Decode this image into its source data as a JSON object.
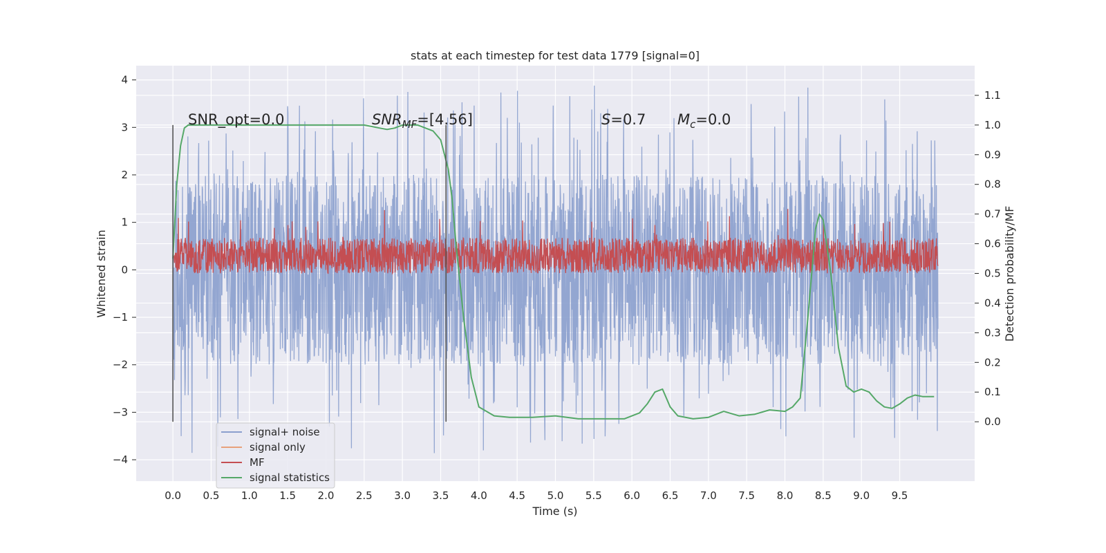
{
  "chart_data": {
    "type": "line",
    "title": "stats at each timestep for test data 1779 [signal=0]",
    "xlabel": "Time (s)",
    "ylabel_left": "Whitened strain",
    "ylabel_right": "Detection probability/MF",
    "xlim": [
      -0.48,
      10.48
    ],
    "ylim_left": [
      -4.45,
      4.3
    ],
    "ylim_right": [
      -0.2,
      1.2
    ],
    "x_ticks": [
      "0.0",
      "0.5",
      "1.0",
      "1.5",
      "2.0",
      "2.5",
      "3.0",
      "3.5",
      "4.0",
      "4.5",
      "5.0",
      "5.5",
      "6.0",
      "6.5",
      "7.0",
      "7.5",
      "8.0",
      "8.5",
      "9.0",
      "9.5"
    ],
    "y_ticks_left": [
      "−4",
      "−3",
      "−2",
      "−1",
      "0",
      "1",
      "2",
      "3",
      "4"
    ],
    "y_ticks_right": [
      "0.0",
      "0.1",
      "0.2",
      "0.3",
      "0.4",
      "0.5",
      "0.6",
      "0.7",
      "0.8",
      "0.9",
      "1.0",
      "1.1"
    ],
    "grid": true,
    "legend_position": "lower-left",
    "annotations": {
      "snr_opt": "SNR_opt=0.0",
      "snr_mf_base": "SNR",
      "snr_mf_sub": "MF",
      "snr_mf_value": "=[4.56]",
      "s_sym": "S",
      "s_value": "=0.7",
      "mc_sym": "M",
      "mc_sub": "c",
      "mc_value": "=0.0"
    },
    "vlines_x": [
      0.0,
      3.57
    ],
    "series": [
      {
        "name": "signal+ noise",
        "color": "#8a9fcd",
        "axis": "left",
        "x_range": [
          0.0,
          10.0
        ],
        "typical_range": [
          -2.0,
          2.0
        ],
        "peak_range": [
          -3.9,
          3.9
        ]
      },
      {
        "name": "signal only",
        "color": "#e8a07a",
        "axis": "left",
        "values": []
      },
      {
        "name": "MF",
        "color": "#c44e52",
        "axis": "right",
        "x_range": [
          0.0,
          10.0
        ],
        "baseline": 0.5,
        "typical_range": [
          0.5,
          0.62
        ],
        "peak": 0.72
      },
      {
        "name": "signal statistics",
        "color": "#55a868",
        "axis": "right",
        "x": [
          0.0,
          0.05,
          0.1,
          0.15,
          0.2,
          0.3,
          0.5,
          1.0,
          1.5,
          2.0,
          2.5,
          2.7,
          2.8,
          2.9,
          3.0,
          3.2,
          3.4,
          3.5,
          3.6,
          3.65,
          3.7,
          3.8,
          3.9,
          4.0,
          4.2,
          4.4,
          4.7,
          5.0,
          5.3,
          5.6,
          5.9,
          6.1,
          6.2,
          6.3,
          6.4,
          6.5,
          6.6,
          6.8,
          7.0,
          7.2,
          7.4,
          7.6,
          7.8,
          8.0,
          8.1,
          8.2,
          8.3,
          8.4,
          8.45,
          8.5,
          8.6,
          8.7,
          8.8,
          8.9,
          9.0,
          9.1,
          9.2,
          9.3,
          9.4,
          9.5,
          9.6,
          9.7,
          9.8,
          9.95
        ],
        "y": [
          0.55,
          0.8,
          0.93,
          0.99,
          1.0,
          1.0,
          1.0,
          1.0,
          1.0,
          1.0,
          1.0,
          0.99,
          0.985,
          0.99,
          1.0,
          1.0,
          0.98,
          0.95,
          0.85,
          0.75,
          0.6,
          0.35,
          0.15,
          0.05,
          0.02,
          0.015,
          0.015,
          0.02,
          0.01,
          0.01,
          0.01,
          0.03,
          0.06,
          0.1,
          0.11,
          0.05,
          0.02,
          0.01,
          0.015,
          0.035,
          0.02,
          0.025,
          0.04,
          0.035,
          0.05,
          0.08,
          0.35,
          0.65,
          0.7,
          0.68,
          0.5,
          0.25,
          0.12,
          0.1,
          0.11,
          0.1,
          0.07,
          0.05,
          0.045,
          0.06,
          0.08,
          0.09,
          0.085,
          0.085
        ]
      }
    ]
  }
}
